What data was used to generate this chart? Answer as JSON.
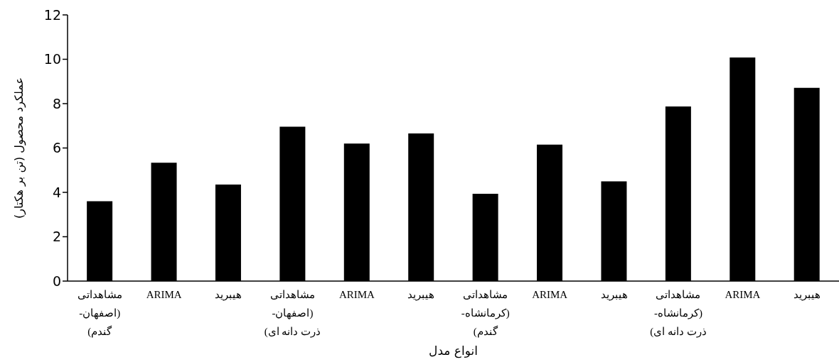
{
  "chart_data": {
    "type": "bar",
    "xlabel": "انواع مدل",
    "ylabel": "عملکرد محصول (تن بر هکتار)",
    "categories": [
      "مشاهداتی\n(اصفهان-\nگندم)",
      "ARIMA",
      "هیبرید",
      "مشاهداتی\n(اصفهان-\nذرت دانه ای)",
      "ARIMA",
      "هیبرید",
      "مشاهداتی\n(کرمانشاه-\nگندم)",
      "ARIMA",
      "هیبرید",
      "مشاهداتی\n(کرمانشاه-\nذرت دانه ای)",
      "ARIMA",
      "هیبرید"
    ],
    "values": [
      3.6,
      5.34,
      4.35,
      6.96,
      6.2,
      6.66,
      3.94,
      6.15,
      4.5,
      7.87,
      10.08,
      8.71
    ],
    "color": "#000000",
    "ylim": [
      0,
      12
    ],
    "yticks": [
      0,
      2,
      4,
      6,
      8,
      10,
      12
    ],
    "grid": false,
    "legend": false
  }
}
